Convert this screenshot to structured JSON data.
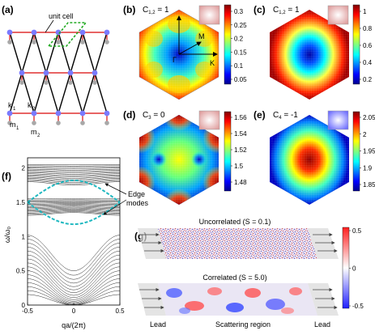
{
  "panels": {
    "a": {
      "label": "(a)",
      "unit_cell": "unit cell",
      "k1": "k",
      "k1_sub": "1",
      "k2": "k",
      "k2_sub": "2",
      "m1": "m",
      "m1_sub": "1",
      "m2": "m",
      "m2_sub": "2"
    },
    "b": {
      "label": "(b)",
      "title_main": "C",
      "title_sub": "1,2",
      "title_val": " = 1",
      "colorbar_ticks": [
        "0.3",
        "0.25",
        "0.2",
        "0.15",
        "0.1",
        "0.05"
      ],
      "point_gamma": "Γ",
      "point_M": "M",
      "point_K": "K"
    },
    "c": {
      "label": "(c)",
      "title_main": "C",
      "title_sub": "1,2",
      "title_val": " = 1",
      "colorbar_ticks": [
        "1",
        "0.8",
        "0.6",
        "0.4",
        "0.2"
      ]
    },
    "d": {
      "label": "(d)",
      "title_main": "C",
      "title_sub": "3",
      "title_val": " = 0",
      "colorbar_ticks": [
        "1.56",
        "1.54",
        "1.52",
        "1.5",
        "1.48"
      ]
    },
    "e": {
      "label": "(e)",
      "title_main": "C",
      "title_sub": "4",
      "title_val": " = -1",
      "colorbar_ticks": [
        "2.05",
        "2",
        "1.95",
        "1.9",
        "1.85"
      ]
    },
    "f": {
      "label": "(f)",
      "ylabel": "ω/ω₀",
      "xlabel": "qa/(2π)",
      "edge_label_1": "Edge",
      "edge_label_2": "modes",
      "y_ticks": [
        "2",
        "1.5",
        "1",
        "0.5",
        "0"
      ],
      "x_ticks": [
        "-0.5",
        "0",
        "0.5"
      ]
    },
    "g": {
      "label": "(g)",
      "uncorrelated": "Uncorrelated (S = 0.1)",
      "correlated": "Correlated (S = 5.0)",
      "lead_left": "Lead",
      "scattering": "Scattering region",
      "lead_right": "Lead",
      "colorbar_ticks": [
        "0.5",
        "0",
        "-0.5"
      ]
    }
  },
  "chart_data": {
    "type": "line",
    "title": "",
    "xlabel": "qa/(2π)",
    "ylabel": "ω/ω₀",
    "xlim": [
      -0.5,
      0.5
    ],
    "ylim": [
      0,
      2.15
    ],
    "bands": [
      {
        "name": "",
        "min": 1.75,
        "max": 2.05
      },
      {
        "name": "",
        "min": 1.35,
        "max": 1.55
      },
      {
        "name": "",
        "min": 0.0,
        "max": 1.02
      }
    ],
    "series": [
      {
        "name": "",
        "x": [
          -0.5,
          -0.25,
          0,
          0.25,
          0.5
        ],
        "y": [
          1.5,
          1.7,
          1.82,
          1.7,
          1.5
        ]
      },
      {
        "name": "",
        "x": [
          -0.5,
          -0.25,
          0,
          0.25,
          0.5
        ],
        "y": [
          1.5,
          1.3,
          1.18,
          1.3,
          1.5
        ]
      }
    ]
  }
}
